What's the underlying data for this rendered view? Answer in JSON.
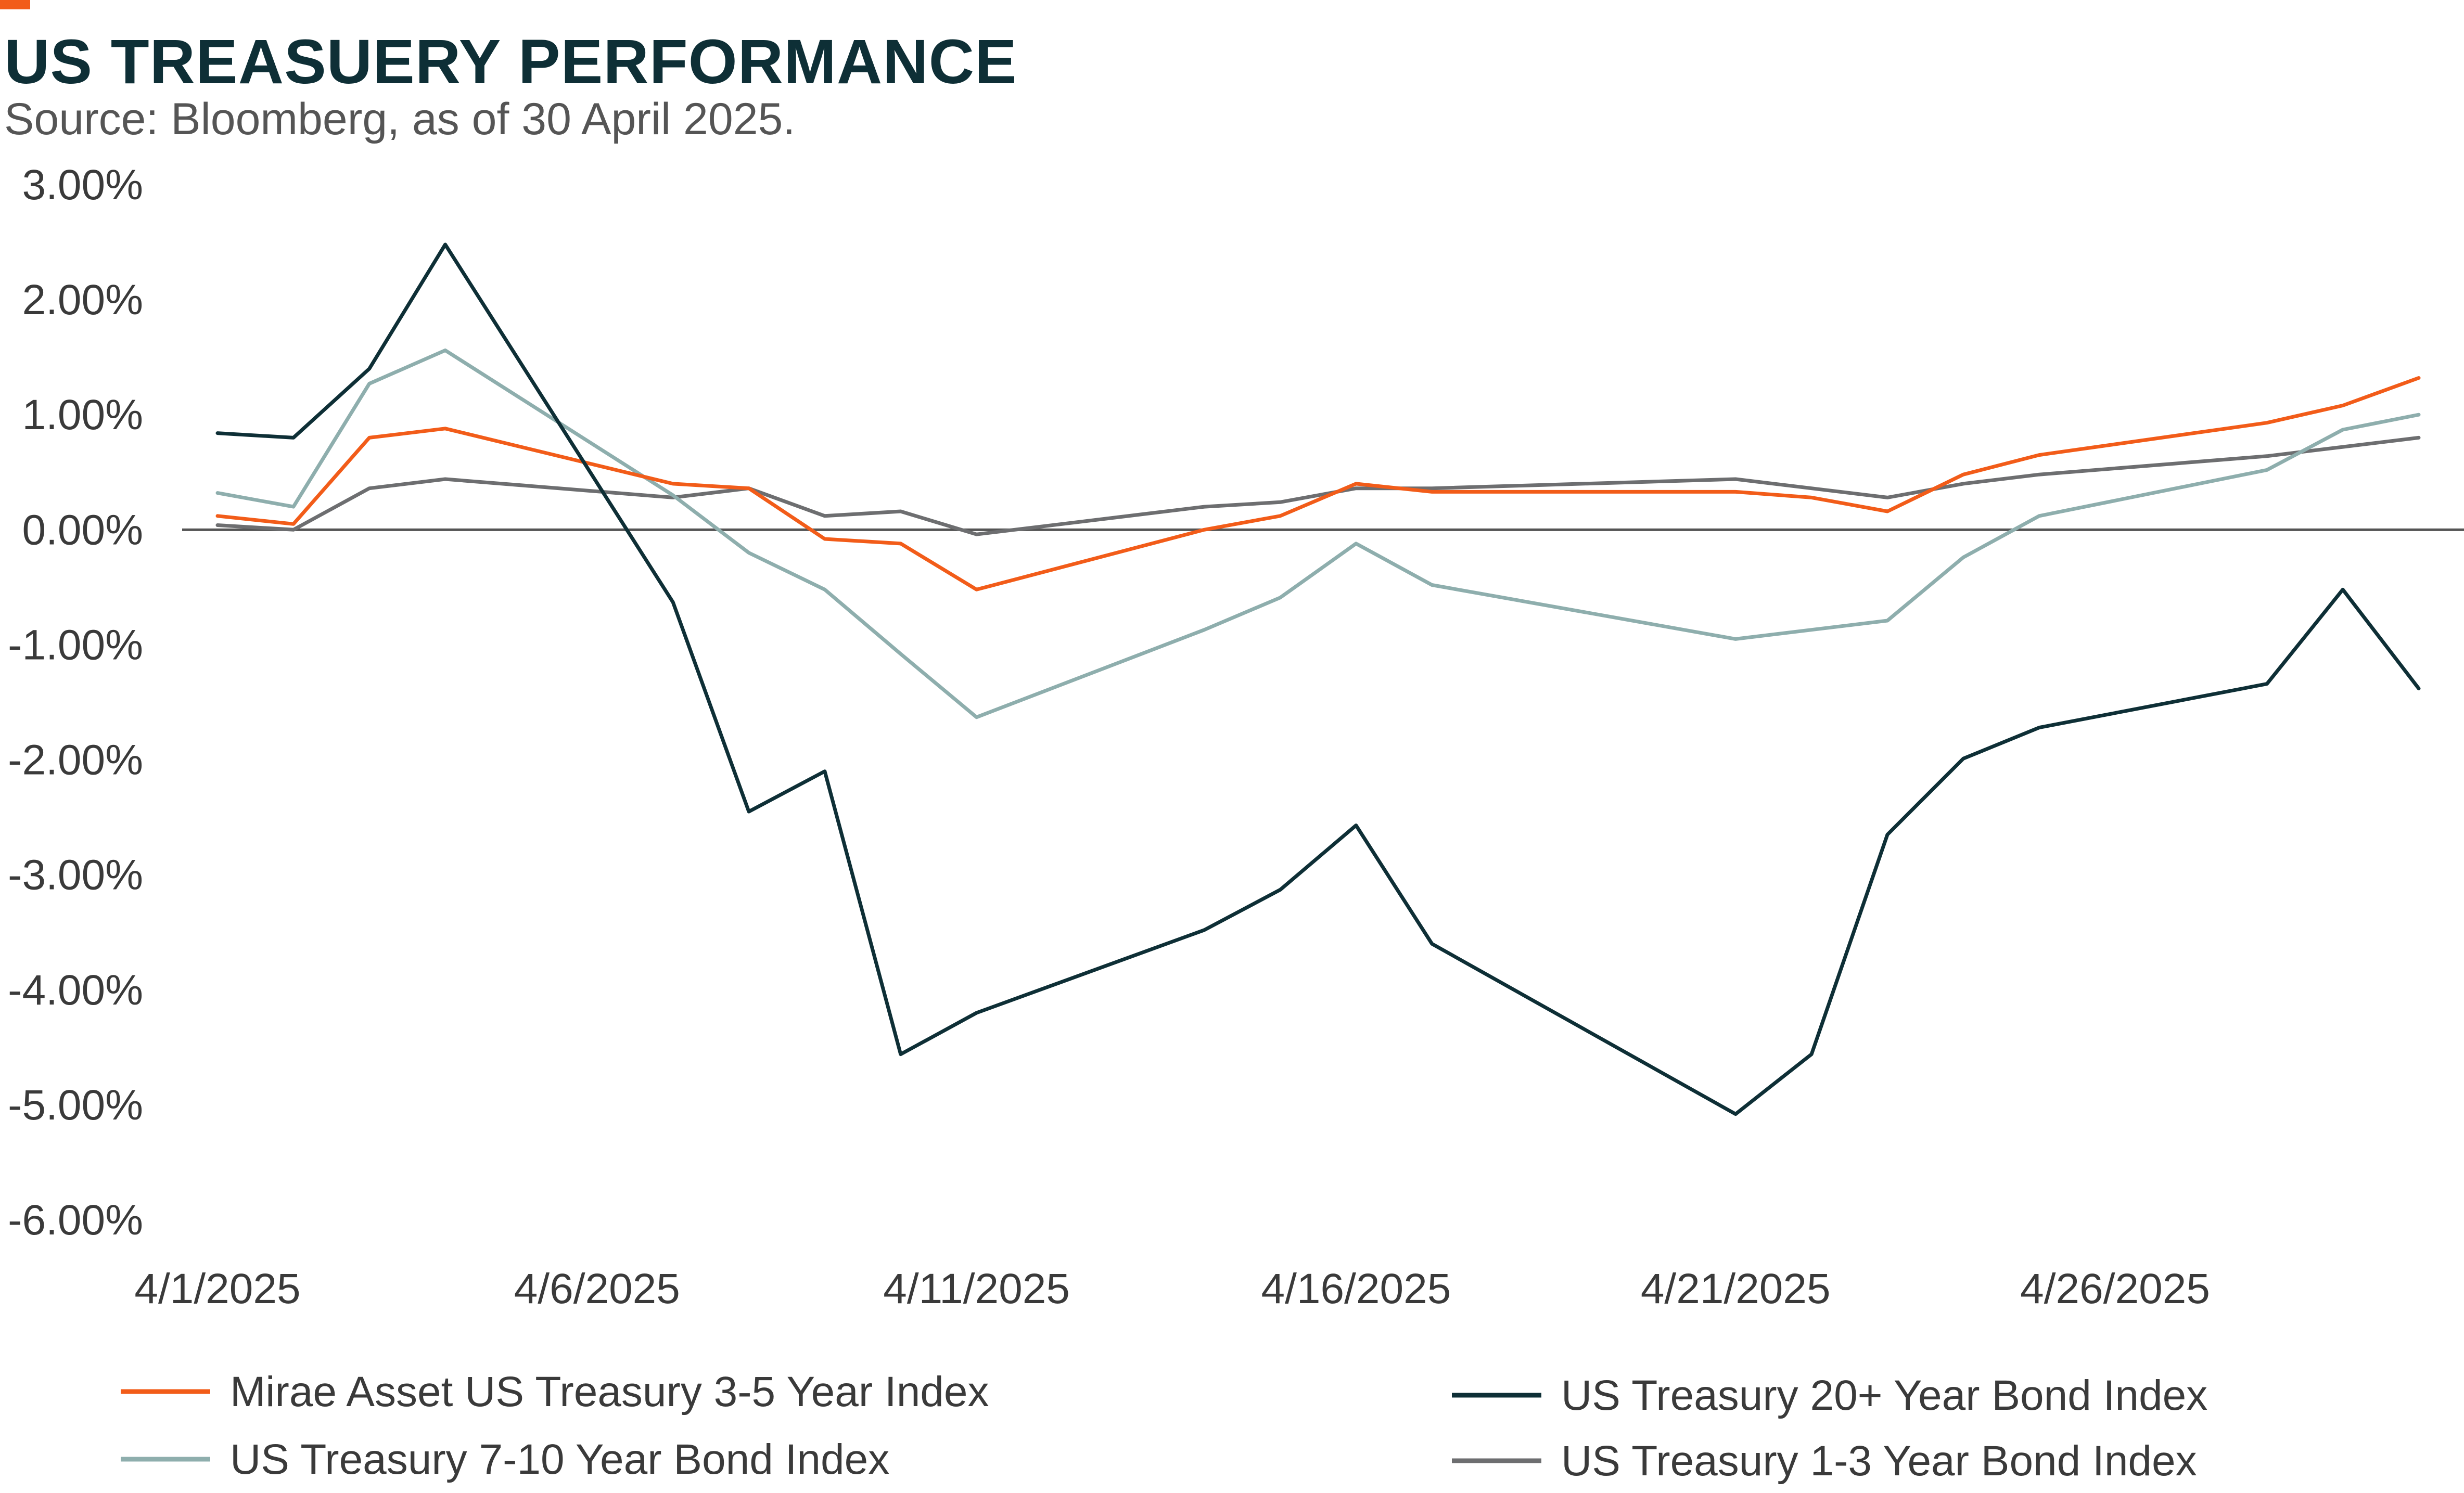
{
  "title": "US TREASUERY PERFORMANCE",
  "subtitle": "Source: Bloomberg, as of 30 April 2025.",
  "colors": {
    "accent": "#F25C19",
    "title": "#0E2F36",
    "axis": "#555555"
  },
  "chart_data": {
    "type": "line",
    "title": "US TREASUERY PERFORMANCE",
    "xlabel": "",
    "ylabel": "",
    "ylim": [
      -6,
      3
    ],
    "grid": false,
    "legend_position": "bottom",
    "y_tick_labels": [
      "3.00%",
      "2.00%",
      "1.00%",
      "0.00%",
      "-1.00%",
      "-2.00%",
      "-3.00%",
      "-4.00%",
      "-5.00%",
      "-6.00%"
    ],
    "y_tick_values": [
      3,
      2,
      1,
      0,
      -1,
      -2,
      -3,
      -4,
      -5,
      -6
    ],
    "x_tick_labels": [
      "4/1/2025",
      "4/6/2025",
      "4/11/2025",
      "4/16/2025",
      "4/21/2025",
      "4/26/2025"
    ],
    "x_tick_values": [
      "2025-04-01",
      "2025-04-06",
      "2025-04-11",
      "2025-04-16",
      "2025-04-21",
      "2025-04-26"
    ],
    "x": [
      "2025-04-01",
      "2025-04-02",
      "2025-04-03",
      "2025-04-04",
      "2025-04-07",
      "2025-04-08",
      "2025-04-09",
      "2025-04-10",
      "2025-04-11",
      "2025-04-14",
      "2025-04-15",
      "2025-04-16",
      "2025-04-17",
      "2025-04-21",
      "2025-04-22",
      "2025-04-23",
      "2025-04-24",
      "2025-04-25",
      "2025-04-28",
      "2025-04-29",
      "2025-04-30"
    ],
    "series": [
      {
        "name": "Mirae Asset US Treasury 3-5 Year Index",
        "color": "#F25C19",
        "values": [
          0.12,
          0.05,
          0.8,
          0.88,
          0.4,
          0.36,
          -0.08,
          -0.12,
          -0.52,
          0.0,
          0.12,
          0.4,
          0.33,
          0.33,
          0.28,
          0.16,
          0.48,
          0.65,
          0.93,
          1.08,
          1.32
        ]
      },
      {
        "name": "US Treasury 20+ Year Bond Index",
        "color": "#0E2F36",
        "values": [
          0.84,
          0.8,
          1.4,
          2.48,
          -0.63,
          -2.45,
          -2.1,
          -4.56,
          -4.2,
          -3.48,
          -3.13,
          -2.57,
          -3.6,
          -5.08,
          -4.56,
          -2.65,
          -1.99,
          -1.72,
          -1.34,
          -0.52,
          -1.38
        ]
      },
      {
        "name": "US Treasury 7-10 Year Bond Index",
        "color": "#8EAEAD",
        "values": [
          0.32,
          0.2,
          1.27,
          1.56,
          0.3,
          -0.2,
          -0.52,
          -1.08,
          -1.63,
          -0.87,
          -0.59,
          -0.12,
          -0.48,
          -0.95,
          -0.87,
          -0.79,
          -0.24,
          0.12,
          0.52,
          0.87,
          1.0
        ]
      },
      {
        "name": "US Treasury 1-3 Year Bond Index",
        "color": "#6D6E70",
        "values": [
          0.04,
          0.0,
          0.36,
          0.44,
          0.28,
          0.36,
          0.12,
          0.16,
          -0.04,
          0.2,
          0.24,
          0.36,
          0.36,
          0.44,
          0.36,
          0.28,
          0.4,
          0.48,
          0.64,
          0.72,
          0.8
        ]
      }
    ]
  }
}
